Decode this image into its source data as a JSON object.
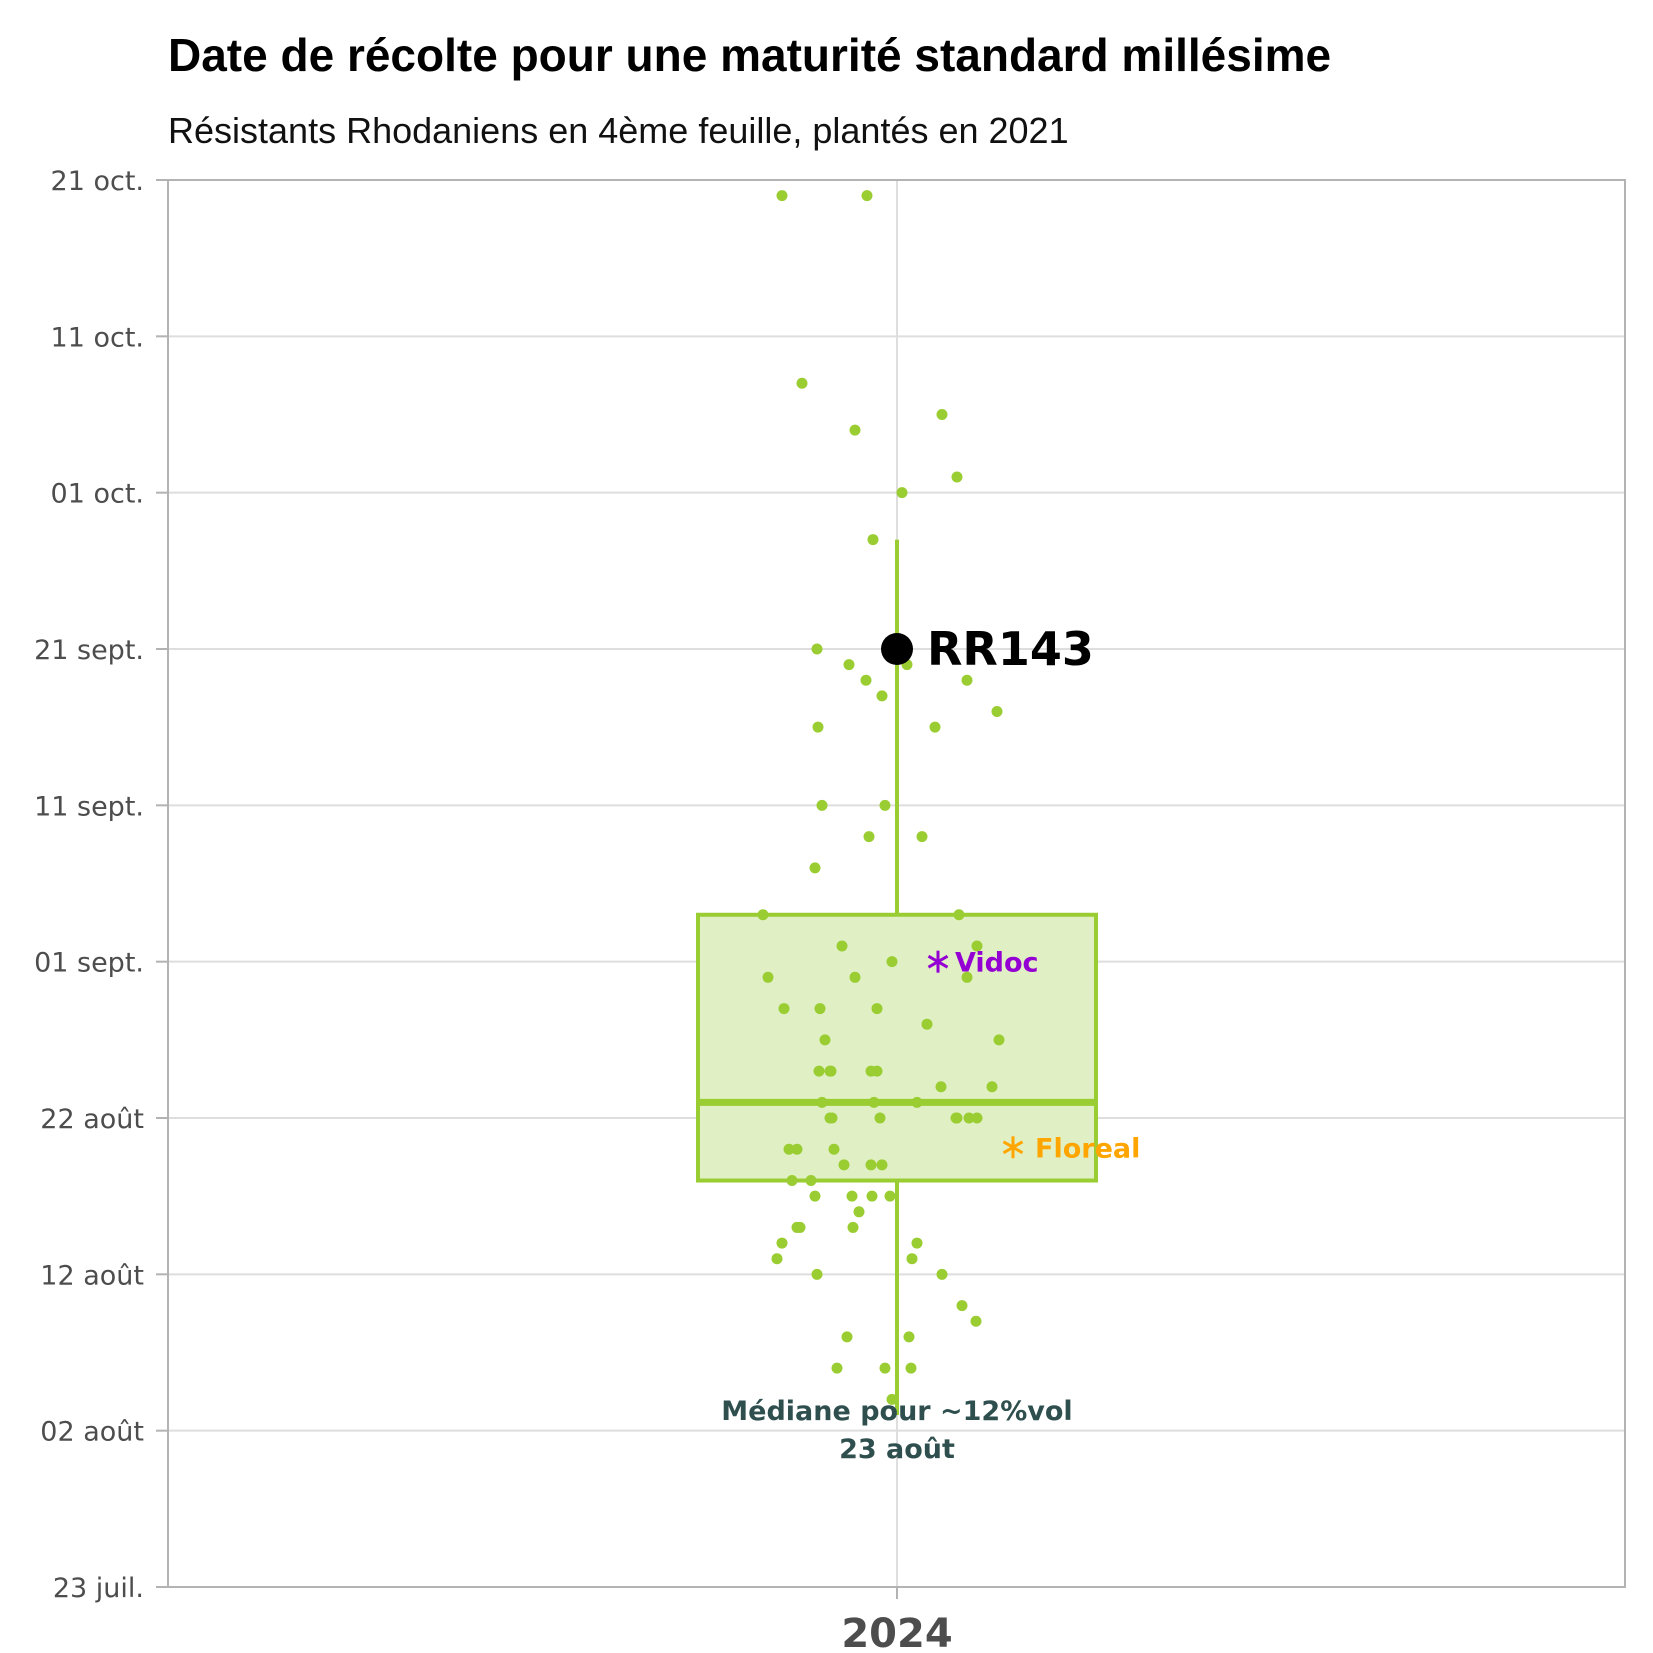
{
  "chart_data": {
    "type": "box",
    "title": "Date de récolte pour une maturité standard millésime",
    "subtitle": "Résistants Rhodaniens en 4ème feuille, plantés en 2021",
    "categories": [
      "2024"
    ],
    "y_axis": {
      "type": "date",
      "range": [
        "2024-07-23",
        "2024-10-21"
      ],
      "ticks": [
        {
          "date": "2024-10-21",
          "label": "21 oct."
        },
        {
          "date": "2024-10-11",
          "label": "11 oct."
        },
        {
          "date": "2024-10-01",
          "label": "01 oct."
        },
        {
          "date": "2024-09-21",
          "label": "21 sept."
        },
        {
          "date": "2024-09-11",
          "label": "11 sept."
        },
        {
          "date": "2024-09-01",
          "label": "01 sept."
        },
        {
          "date": "2024-08-22",
          "label": "22 août"
        },
        {
          "date": "2024-08-12",
          "label": "12 août"
        },
        {
          "date": "2024-08-02",
          "label": "02 août"
        },
        {
          "date": "2024-07-23",
          "label": "23 juil."
        }
      ]
    },
    "grid": true,
    "box": {
      "category": "2024",
      "q1": "2024-08-18",
      "median": "2024-08-23",
      "q3": "2024-09-04",
      "whisker_low": "2024-08-03",
      "whisker_high": "2024-09-28",
      "color": "#9acd32",
      "fill": "#e0f0c4"
    },
    "points": {
      "color": "#9acd32",
      "values": [
        "2024-10-20",
        "2024-10-20",
        "2024-10-08",
        "2024-10-06",
        "2024-10-05",
        "2024-10-02",
        "2024-10-01",
        "2024-09-28",
        "2024-09-21",
        "2024-09-20",
        "2024-09-20",
        "2024-09-19",
        "2024-09-19",
        "2024-09-18",
        "2024-09-17",
        "2024-09-16",
        "2024-09-16",
        "2024-09-11",
        "2024-09-11",
        "2024-09-09",
        "2024-09-09",
        "2024-09-07",
        "2024-09-04",
        "2024-09-04",
        "2024-09-02",
        "2024-09-02",
        "2024-09-01",
        "2024-08-31",
        "2024-08-31",
        "2024-08-31",
        "2024-08-29",
        "2024-08-29",
        "2024-08-29",
        "2024-08-28",
        "2024-08-27",
        "2024-08-27",
        "2024-08-25",
        "2024-08-25",
        "2024-08-25",
        "2024-08-25",
        "2024-08-25",
        "2024-08-24",
        "2024-08-24",
        "2024-08-23",
        "2024-08-23",
        "2024-08-23",
        "2024-08-22",
        "2024-08-22",
        "2024-08-22",
        "2024-08-22",
        "2024-08-22",
        "2024-08-22",
        "2024-08-22",
        "2024-08-20",
        "2024-08-20",
        "2024-08-20",
        "2024-08-19",
        "2024-08-19",
        "2024-08-19",
        "2024-08-18",
        "2024-08-18",
        "2024-08-17",
        "2024-08-17",
        "2024-08-17",
        "2024-08-17",
        "2024-08-16",
        "2024-08-15",
        "2024-08-15",
        "2024-08-15",
        "2024-08-14",
        "2024-08-14",
        "2024-08-13",
        "2024-08-13",
        "2024-08-12",
        "2024-08-12",
        "2024-08-10",
        "2024-08-09",
        "2024-08-08",
        "2024-08-08",
        "2024-08-06",
        "2024-08-06",
        "2024-08-06",
        "2024-08-04"
      ]
    },
    "highlights": [
      {
        "label": "RR143",
        "date": "2024-09-21",
        "color": "#000000",
        "marker": "circle"
      },
      {
        "label": "Vidoc",
        "date": "2024-09-01",
        "color": "#9400d3",
        "marker": "asterisk"
      },
      {
        "label": "Floreal",
        "date": "2024-08-20",
        "color": "#ffa500",
        "marker": "asterisk"
      }
    ],
    "annotation": {
      "line1": "Médiane pour ~12%vol",
      "line2": "23 août",
      "color": "#2f4f4f"
    },
    "colors": {
      "axis": "#b3b3b3",
      "grid": "#dedede",
      "tick_text": "#4d4d4d"
    }
  }
}
